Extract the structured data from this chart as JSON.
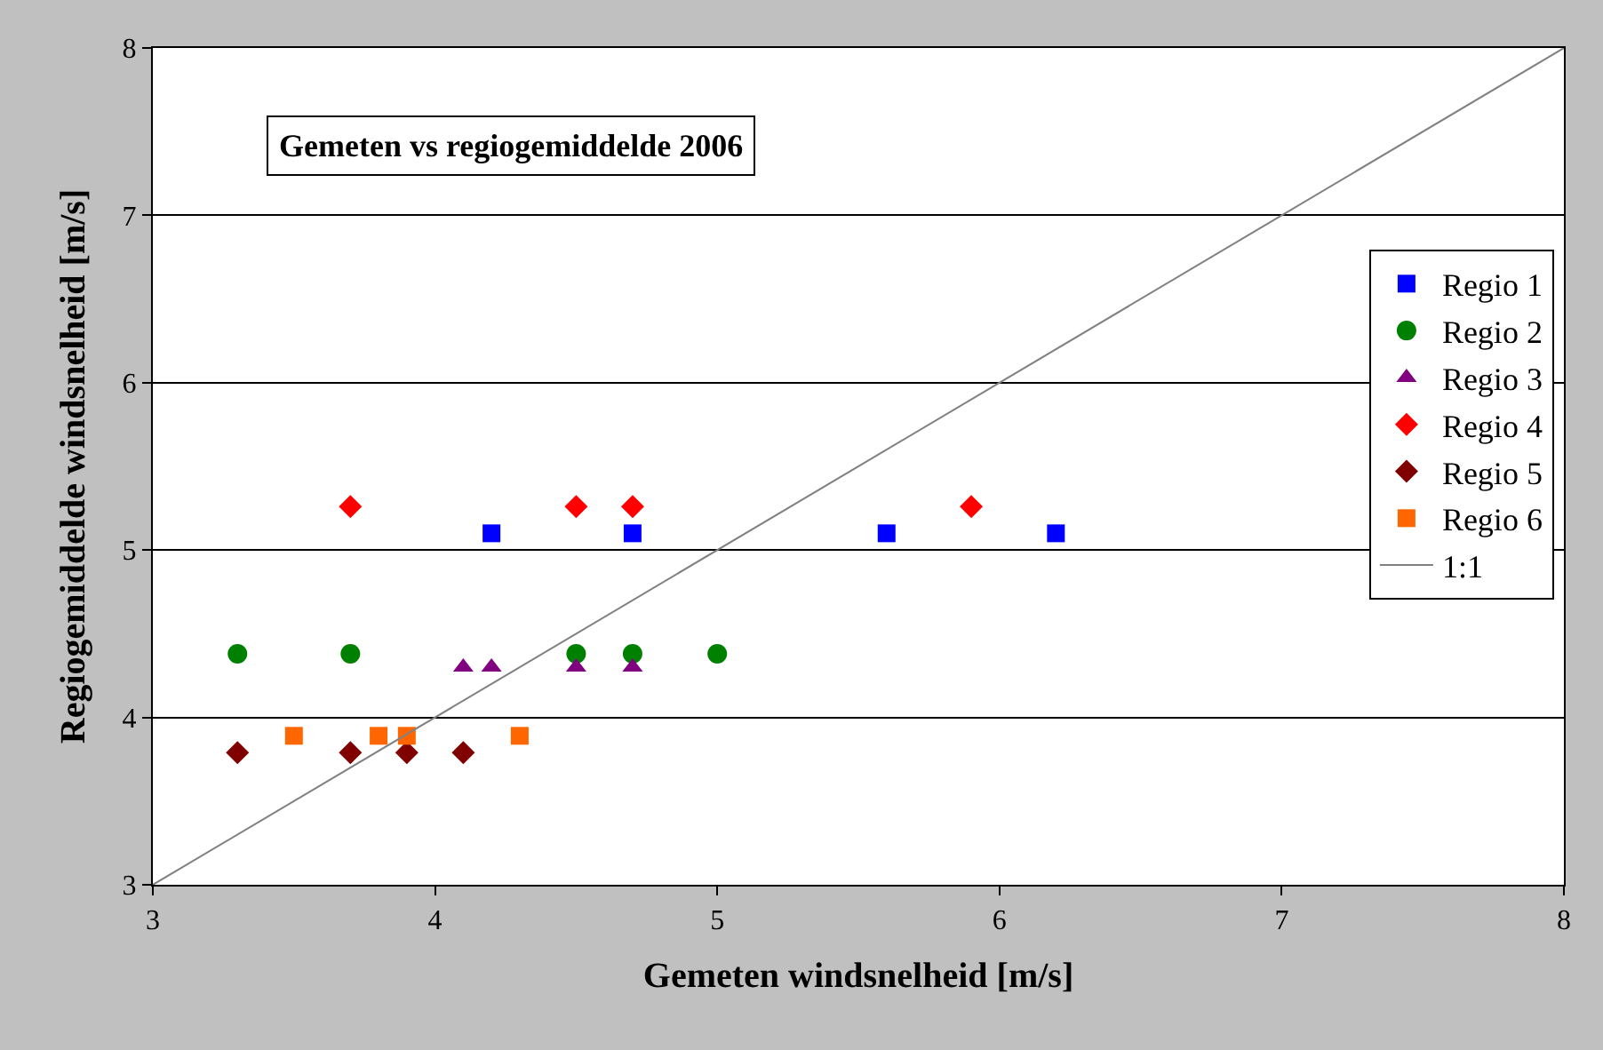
{
  "chart_data": {
    "type": "scatter",
    "title": "Gemeten vs regiogemiddelde 2006",
    "xlabel": "Gemeten windsnelheid [m/s]",
    "ylabel": "Regiogemiddelde windsnelheid [m/s]",
    "xlim": [
      3,
      8
    ],
    "ylim": [
      3,
      8
    ],
    "xticks": [
      3,
      4,
      5,
      6,
      7,
      8
    ],
    "yticks": [
      3,
      4,
      5,
      6,
      7,
      8
    ],
    "grid": "y",
    "legend": "right",
    "series": [
      {
        "name": "Regio 1",
        "color": "#0000ff",
        "marker": "square",
        "x": [
          4.2,
          4.7,
          5.6,
          6.2
        ],
        "values": [
          5.1,
          5.1,
          5.1,
          5.1
        ]
      },
      {
        "name": "Regio 2",
        "color": "#008000",
        "marker": "circle",
        "x": [
          3.3,
          3.7,
          4.5,
          4.7,
          5.0
        ],
        "values": [
          4.38,
          4.38,
          4.38,
          4.38,
          4.38
        ]
      },
      {
        "name": "Regio 3",
        "color": "#800080",
        "marker": "triangle",
        "x": [
          4.1,
          4.2,
          4.5,
          4.7
        ],
        "values": [
          4.3,
          4.3,
          4.3,
          4.3
        ]
      },
      {
        "name": "Regio 4",
        "color": "#ff0000",
        "marker": "diamond",
        "x": [
          3.7,
          4.5,
          4.7,
          5.9
        ],
        "values": [
          5.26,
          5.26,
          5.26,
          5.26
        ]
      },
      {
        "name": "Regio 5",
        "color": "#800000",
        "marker": "diamond",
        "x": [
          3.3,
          3.7,
          3.9,
          4.1
        ],
        "values": [
          3.79,
          3.79,
          3.79,
          3.79
        ]
      },
      {
        "name": "Regio 6",
        "color": "#ff6600",
        "marker": "square",
        "x": [
          3.5,
          3.8,
          3.9,
          4.3
        ],
        "values": [
          3.89,
          3.89,
          3.89,
          3.89
        ]
      },
      {
        "name": "1:1",
        "color": "#808080",
        "type": "line",
        "marker": "none",
        "x": [
          3,
          8
        ],
        "values": [
          3,
          8
        ]
      }
    ]
  }
}
